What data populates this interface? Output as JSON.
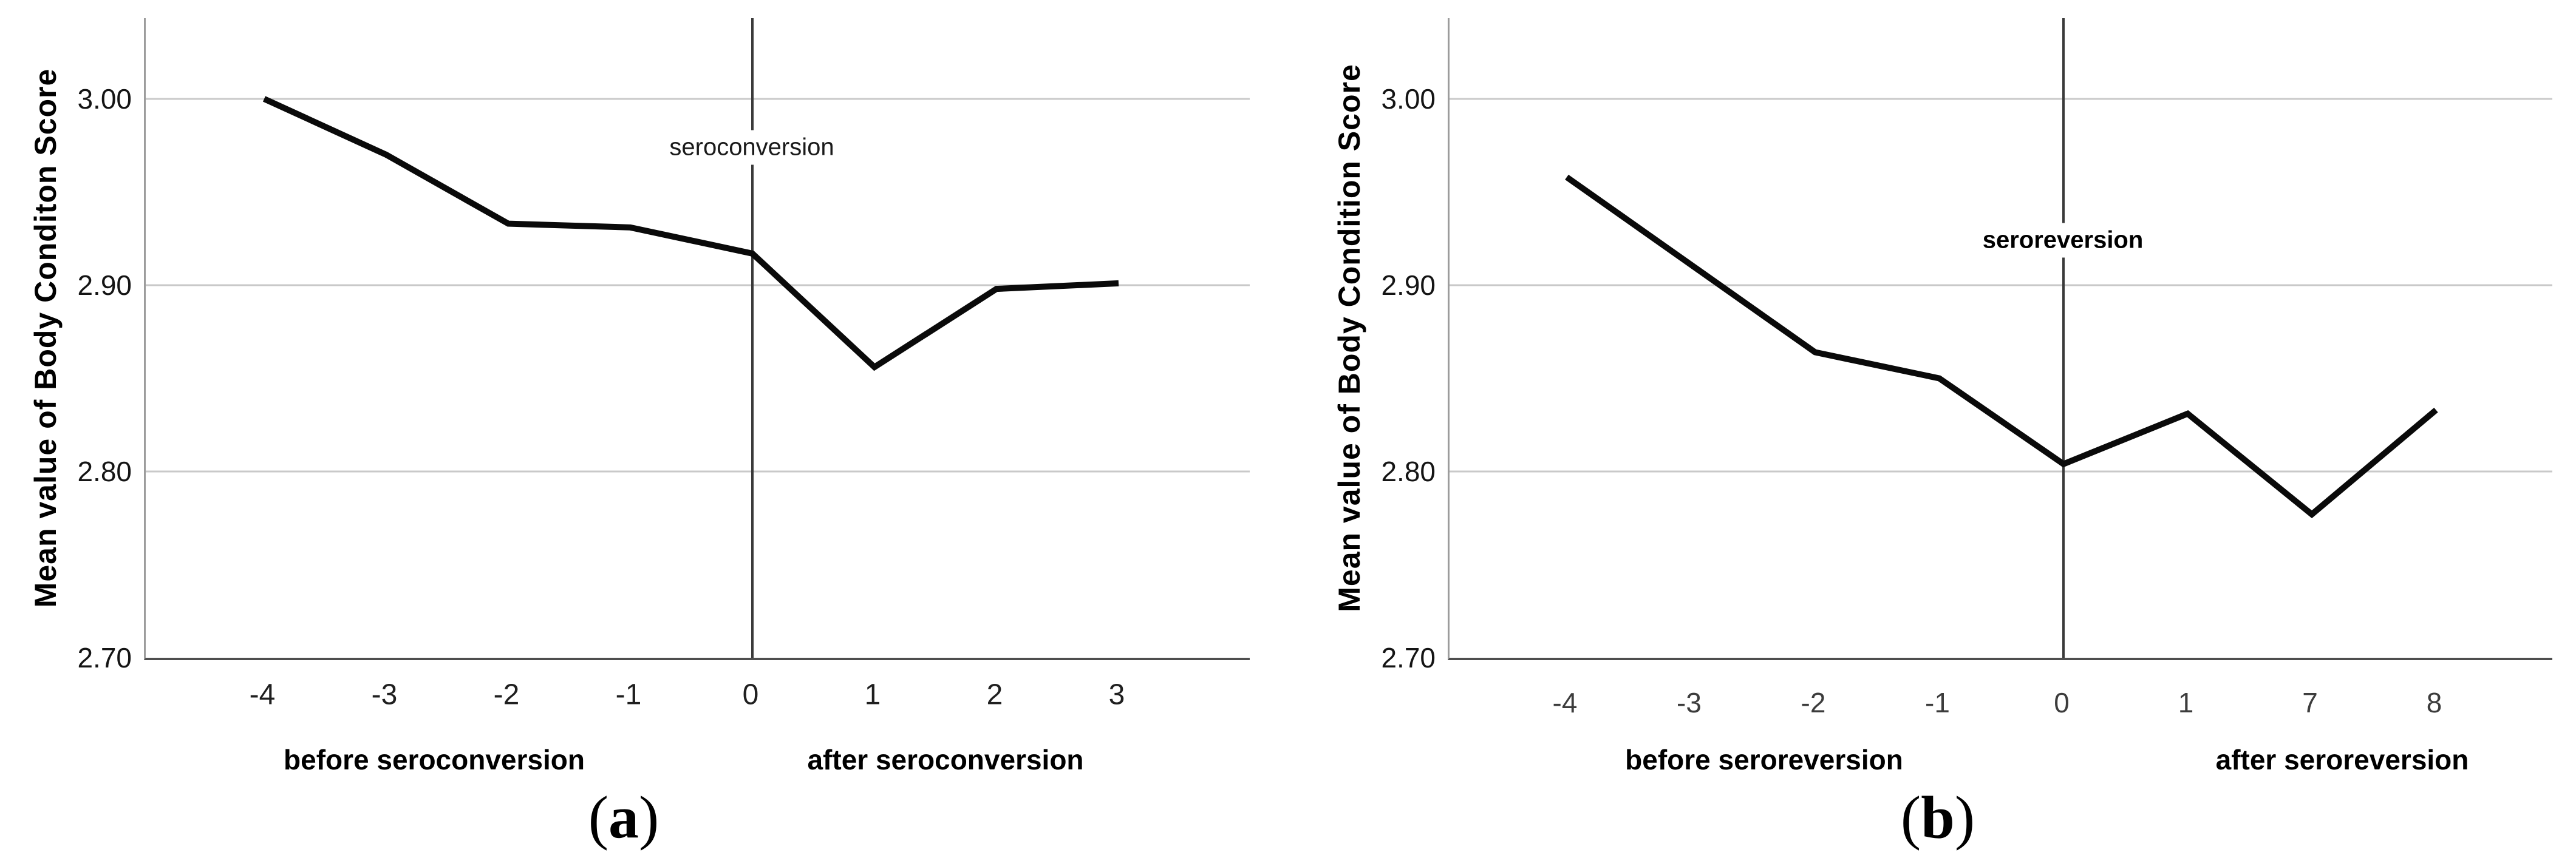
{
  "figure": {
    "background": "#ffffff",
    "grid_color": "#c9c9c9",
    "axis_color": "#4f4f4f",
    "y_axis_line_color": "#9c9c9c",
    "event_line_color": "#3a3a3a",
    "line_color": "#0a0a0a"
  },
  "chart_data": [
    {
      "id": "a",
      "type": "line",
      "y_axis_title": "Mean value of Body Conditon Score",
      "x_group_labels": {
        "before": "before seroconversion",
        "after": "after seroconversion"
      },
      "annotation": {
        "text": "seroconversion",
        "bold": false,
        "at_category": "0"
      },
      "categories": [
        "-4",
        "-3",
        "-2",
        "-1",
        "0",
        "1",
        "2",
        "3"
      ],
      "values": [
        3.0,
        2.97,
        2.933,
        2.931,
        2.917,
        2.856,
        2.898,
        2.901
      ],
      "y_ticks": [
        {
          "label": "3.00",
          "value": 3.0
        },
        {
          "label": "2.90",
          "value": 2.9
        },
        {
          "label": "2.80",
          "value": 2.8
        },
        {
          "label": "2.70",
          "value": 2.7
        }
      ],
      "ylim": [
        2.7,
        3.0433
      ],
      "grid": "horizontal",
      "legend": "none",
      "caption": {
        "open": "(",
        "letter": "a",
        "close": ")"
      }
    },
    {
      "id": "b",
      "type": "line",
      "y_axis_title": "Mean value of Body Condition Score",
      "x_group_labels": {
        "before": "before seroreversion",
        "after": "after seroreversion"
      },
      "annotation": {
        "text": "seroreversion",
        "bold": true,
        "at_category": "0"
      },
      "categories": [
        "-4",
        "-3",
        "-2",
        "-1",
        "0",
        "1",
        "7",
        "8"
      ],
      "values": [
        2.958,
        2.911,
        2.864,
        2.85,
        2.804,
        2.831,
        2.777,
        2.833
      ],
      "y_ticks": [
        {
          "label": "3.00",
          "value": 3.0
        },
        {
          "label": "2.90",
          "value": 2.9
        },
        {
          "label": "2.80",
          "value": 2.8
        },
        {
          "label": "2.70",
          "value": 2.7
        }
      ],
      "ylim": [
        2.7,
        3.0433
      ],
      "grid": "horizontal",
      "legend": "none",
      "caption": {
        "open": "(",
        "letter": "b",
        "close": ")"
      }
    }
  ]
}
